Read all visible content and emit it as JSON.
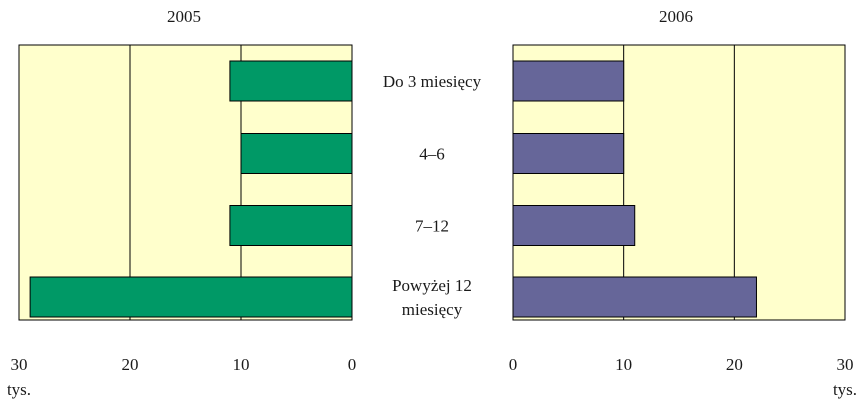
{
  "chart_data": [
    {
      "type": "bar",
      "orientation": "horizontal",
      "title": "2005",
      "direction": "right-to-left",
      "categories": [
        "Do 3 miesięcy",
        "4–6",
        "7–12",
        "Powyżej 12 miesięcy"
      ],
      "values": [
        11,
        10,
        11,
        29
      ],
      "xlim": [
        0,
        30
      ],
      "xticks": [
        "30",
        "20",
        "10",
        "0"
      ],
      "unit": "tys.",
      "bar_color": "#009966",
      "background_color": "#ffffcc",
      "grid": true
    },
    {
      "type": "bar",
      "orientation": "horizontal",
      "title": "2006",
      "direction": "left-to-right",
      "categories": [
        "Do 3 miesięcy",
        "4–6",
        "7–12",
        "Powyżej 12 miesięcy"
      ],
      "values": [
        10,
        10,
        11,
        22
      ],
      "xlim": [
        0,
        30
      ],
      "xticks": [
        "0",
        "10",
        "20",
        "30"
      ],
      "unit": "tys.",
      "bar_color": "#666699",
      "background_color": "#ffffcc",
      "grid": true
    }
  ],
  "category_labels": [
    [
      "Do 3 miesięcy"
    ],
    [
      "4–6"
    ],
    [
      "7–12"
    ],
    [
      "Powyżej 12",
      "miesięcy"
    ]
  ]
}
